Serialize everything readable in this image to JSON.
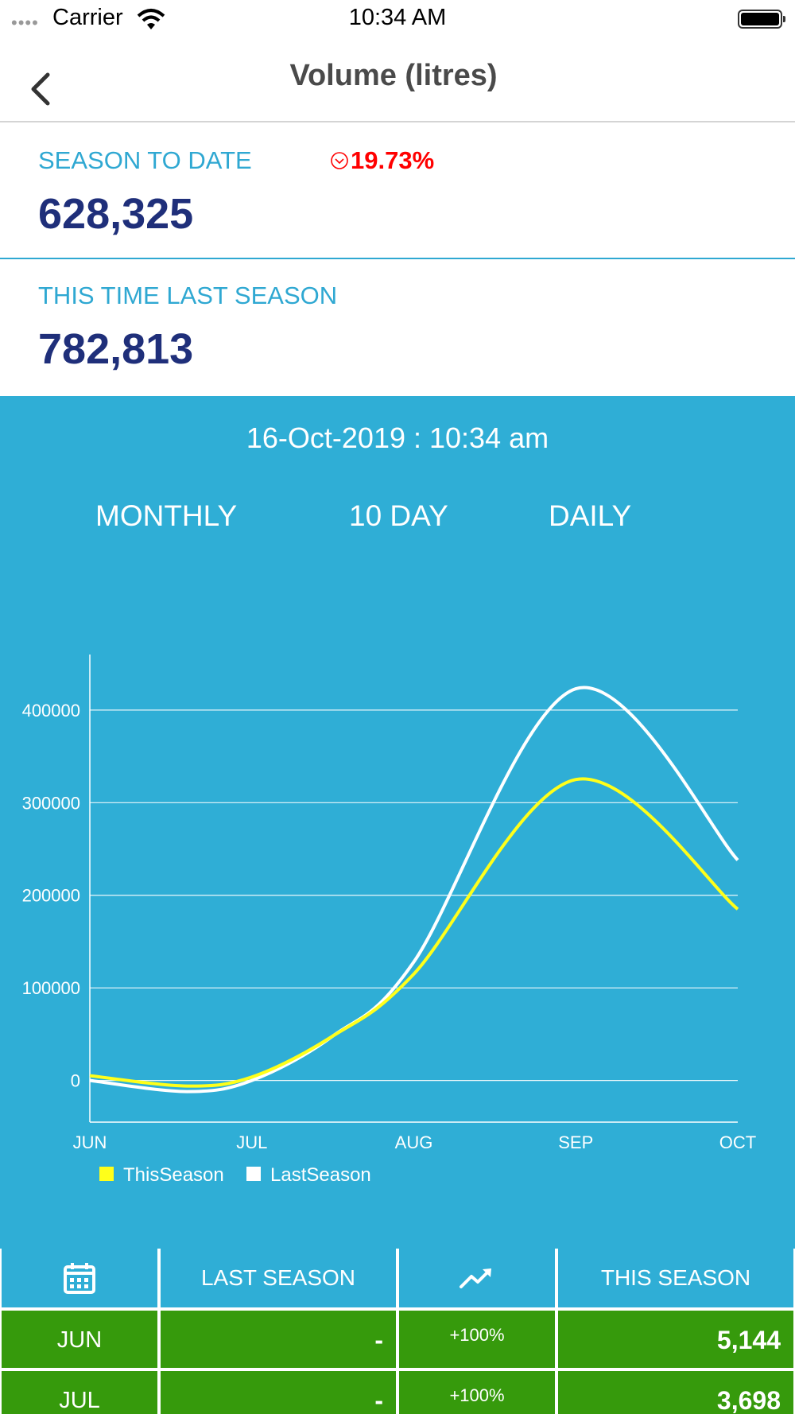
{
  "status_bar": {
    "carrier": "Carrier",
    "time": "10:34 AM"
  },
  "nav": {
    "title": "Volume (litres)"
  },
  "season_to_date": {
    "label": "SEASON TO DATE",
    "value": "628,325",
    "change": "19.73%",
    "change_color": "#ff0000"
  },
  "last_season": {
    "label": "THIS TIME LAST SEASON",
    "value": "782,813"
  },
  "chart_header": {
    "datetime": "16-Oct-2019 : 10:34 am"
  },
  "tabs": [
    {
      "label": "MONTHLY",
      "active": true
    },
    {
      "label": "10 DAY",
      "active": false
    },
    {
      "label": "DAILY",
      "active": false
    }
  ],
  "chart_data": {
    "type": "line",
    "categories": [
      "JUN",
      "JUL",
      "AUG",
      "SEP",
      "OCT"
    ],
    "yticks": [
      0,
      100000,
      200000,
      300000,
      400000
    ],
    "ylim": [
      -45000,
      460000
    ],
    "series": [
      {
        "name": "ThisSeason",
        "color": "#ffff1a",
        "points": [
          [
            0,
            5144
          ],
          [
            0.6,
            -6000
          ],
          [
            1,
            3698
          ],
          [
            1.5,
            48000
          ],
          [
            2,
            115000
          ],
          [
            3,
            325000
          ],
          [
            4,
            185000
          ]
        ]
      },
      {
        "name": "LastSeason",
        "color": "#ffffff",
        "points": [
          [
            0,
            0
          ],
          [
            0.6,
            -12000
          ],
          [
            1,
            0
          ],
          [
            1.5,
            48000
          ],
          [
            2,
            128000
          ],
          [
            3,
            423000
          ],
          [
            4,
            238000
          ]
        ]
      }
    ],
    "legend_position": "bottom-left",
    "grid": true
  },
  "table": {
    "headers": {
      "month_icon": "calendar-icon",
      "last_season": "LAST SEASON",
      "trend_icon": "trend-up-icon",
      "this_season": "THIS SEASON"
    },
    "rows": [
      {
        "month": "JUN",
        "last": "-",
        "change": "+100%",
        "this": "5,144"
      },
      {
        "month": "JUL",
        "last": "-",
        "change": "+100%",
        "this": "3,698"
      }
    ]
  },
  "colors": {
    "panel": "#2faed6",
    "accent_label": "#2fa8d2",
    "value_text": "#1f2f7a",
    "row_green": "#369a0c",
    "active_tab": "#ffff1a"
  }
}
